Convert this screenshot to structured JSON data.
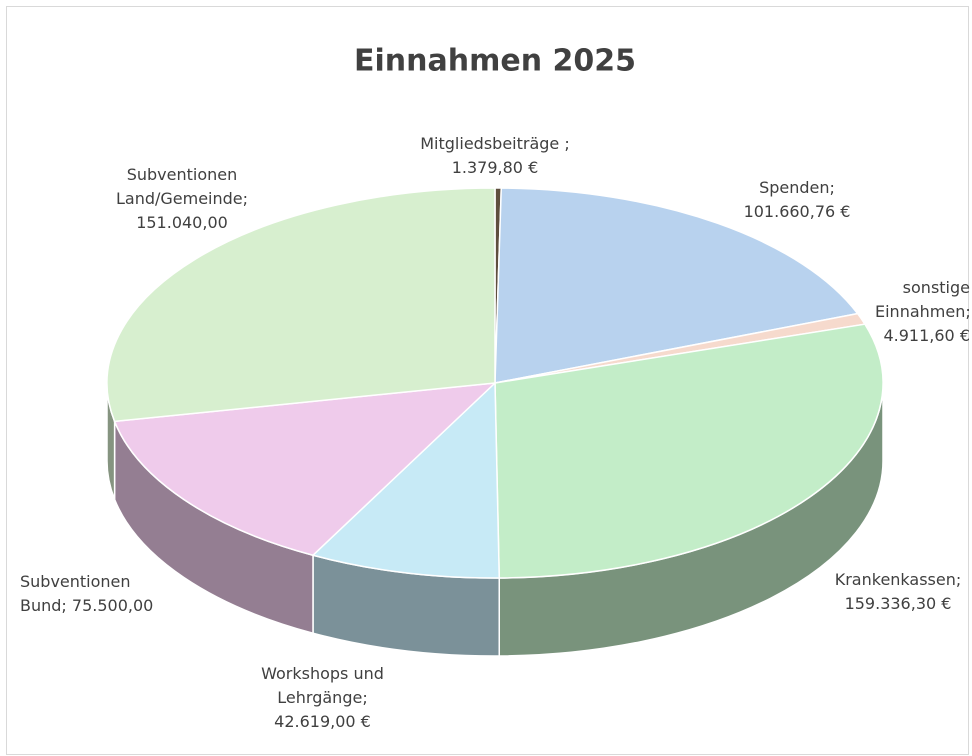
{
  "chart_data": {
    "type": "pie",
    "title": "Einnahmen 2025",
    "categories": [
      "Mitgliedsbeiträge ;",
      "Spenden;",
      "sonstige Einnahmen;",
      "Krankenkassen;",
      "Workshops und Lehrgänge;",
      "Subventionen Bund;",
      "Subventionen Land/Gemeinde;"
    ],
    "values": [
      1379.8,
      101660.76,
      4911.6,
      159336.3,
      42619.0,
      75500.0,
      151040.0
    ],
    "value_labels": [
      "1.379,80 €",
      "101.660,76 €",
      "4.911,60 €",
      "159.336,30 €",
      "42.619,00 €",
      "75.500,00",
      "151.040,00"
    ],
    "colors": [
      "#5e4e3e",
      "#b8d2ee",
      "#f6dacd",
      "#c3edc8",
      "#c7eaf6",
      "#efcbeb",
      "#d7efcf"
    ]
  }
}
